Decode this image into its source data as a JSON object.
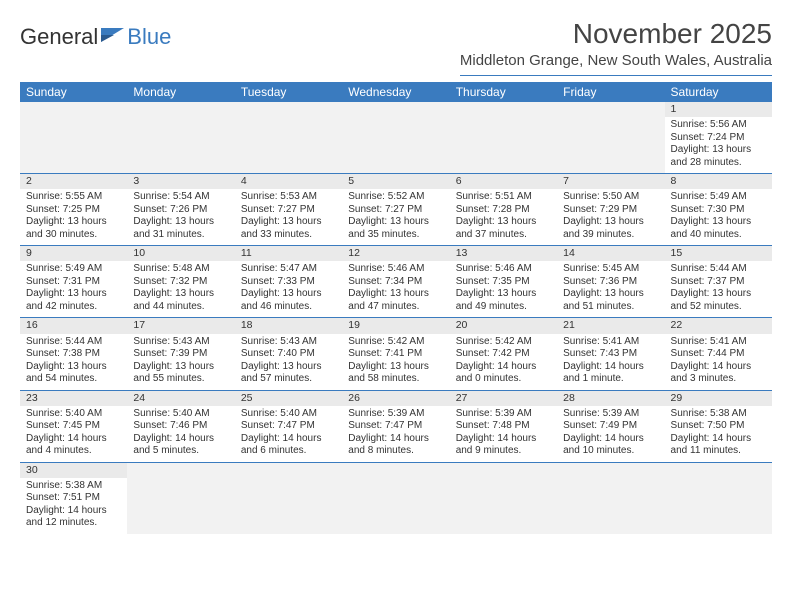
{
  "logo": {
    "text1": "General",
    "text2": "Blue"
  },
  "title": "November 2025",
  "location": "Middleton Grange, New South Wales, Australia",
  "colors": {
    "accent": "#3a7bbf",
    "header_bg": "#3a7bbf",
    "header_text": "#ffffff",
    "daynum_bg": "#eaeaea",
    "empty_bg": "#f2f2f2",
    "text": "#333333"
  },
  "weekdays": [
    "Sunday",
    "Monday",
    "Tuesday",
    "Wednesday",
    "Thursday",
    "Friday",
    "Saturday"
  ],
  "first_weekday_index": 6,
  "days": [
    {
      "n": 1,
      "sunrise": "5:56 AM",
      "sunset": "7:24 PM",
      "daylight": "13 hours and 28 minutes."
    },
    {
      "n": 2,
      "sunrise": "5:55 AM",
      "sunset": "7:25 PM",
      "daylight": "13 hours and 30 minutes."
    },
    {
      "n": 3,
      "sunrise": "5:54 AM",
      "sunset": "7:26 PM",
      "daylight": "13 hours and 31 minutes."
    },
    {
      "n": 4,
      "sunrise": "5:53 AM",
      "sunset": "7:27 PM",
      "daylight": "13 hours and 33 minutes."
    },
    {
      "n": 5,
      "sunrise": "5:52 AM",
      "sunset": "7:27 PM",
      "daylight": "13 hours and 35 minutes."
    },
    {
      "n": 6,
      "sunrise": "5:51 AM",
      "sunset": "7:28 PM",
      "daylight": "13 hours and 37 minutes."
    },
    {
      "n": 7,
      "sunrise": "5:50 AM",
      "sunset": "7:29 PM",
      "daylight": "13 hours and 39 minutes."
    },
    {
      "n": 8,
      "sunrise": "5:49 AM",
      "sunset": "7:30 PM",
      "daylight": "13 hours and 40 minutes."
    },
    {
      "n": 9,
      "sunrise": "5:49 AM",
      "sunset": "7:31 PM",
      "daylight": "13 hours and 42 minutes."
    },
    {
      "n": 10,
      "sunrise": "5:48 AM",
      "sunset": "7:32 PM",
      "daylight": "13 hours and 44 minutes."
    },
    {
      "n": 11,
      "sunrise": "5:47 AM",
      "sunset": "7:33 PM",
      "daylight": "13 hours and 46 minutes."
    },
    {
      "n": 12,
      "sunrise": "5:46 AM",
      "sunset": "7:34 PM",
      "daylight": "13 hours and 47 minutes."
    },
    {
      "n": 13,
      "sunrise": "5:46 AM",
      "sunset": "7:35 PM",
      "daylight": "13 hours and 49 minutes."
    },
    {
      "n": 14,
      "sunrise": "5:45 AM",
      "sunset": "7:36 PM",
      "daylight": "13 hours and 51 minutes."
    },
    {
      "n": 15,
      "sunrise": "5:44 AM",
      "sunset": "7:37 PM",
      "daylight": "13 hours and 52 minutes."
    },
    {
      "n": 16,
      "sunrise": "5:44 AM",
      "sunset": "7:38 PM",
      "daylight": "13 hours and 54 minutes."
    },
    {
      "n": 17,
      "sunrise": "5:43 AM",
      "sunset": "7:39 PM",
      "daylight": "13 hours and 55 minutes."
    },
    {
      "n": 18,
      "sunrise": "5:43 AM",
      "sunset": "7:40 PM",
      "daylight": "13 hours and 57 minutes."
    },
    {
      "n": 19,
      "sunrise": "5:42 AM",
      "sunset": "7:41 PM",
      "daylight": "13 hours and 58 minutes."
    },
    {
      "n": 20,
      "sunrise": "5:42 AM",
      "sunset": "7:42 PM",
      "daylight": "14 hours and 0 minutes."
    },
    {
      "n": 21,
      "sunrise": "5:41 AM",
      "sunset": "7:43 PM",
      "daylight": "14 hours and 1 minute."
    },
    {
      "n": 22,
      "sunrise": "5:41 AM",
      "sunset": "7:44 PM",
      "daylight": "14 hours and 3 minutes."
    },
    {
      "n": 23,
      "sunrise": "5:40 AM",
      "sunset": "7:45 PM",
      "daylight": "14 hours and 4 minutes."
    },
    {
      "n": 24,
      "sunrise": "5:40 AM",
      "sunset": "7:46 PM",
      "daylight": "14 hours and 5 minutes."
    },
    {
      "n": 25,
      "sunrise": "5:40 AM",
      "sunset": "7:47 PM",
      "daylight": "14 hours and 6 minutes."
    },
    {
      "n": 26,
      "sunrise": "5:39 AM",
      "sunset": "7:47 PM",
      "daylight": "14 hours and 8 minutes."
    },
    {
      "n": 27,
      "sunrise": "5:39 AM",
      "sunset": "7:48 PM",
      "daylight": "14 hours and 9 minutes."
    },
    {
      "n": 28,
      "sunrise": "5:39 AM",
      "sunset": "7:49 PM",
      "daylight": "14 hours and 10 minutes."
    },
    {
      "n": 29,
      "sunrise": "5:38 AM",
      "sunset": "7:50 PM",
      "daylight": "14 hours and 11 minutes."
    },
    {
      "n": 30,
      "sunrise": "5:38 AM",
      "sunset": "7:51 PM",
      "daylight": "14 hours and 12 minutes."
    }
  ],
  "labels": {
    "sunrise": "Sunrise:",
    "sunset": "Sunset:",
    "daylight": "Daylight:"
  }
}
